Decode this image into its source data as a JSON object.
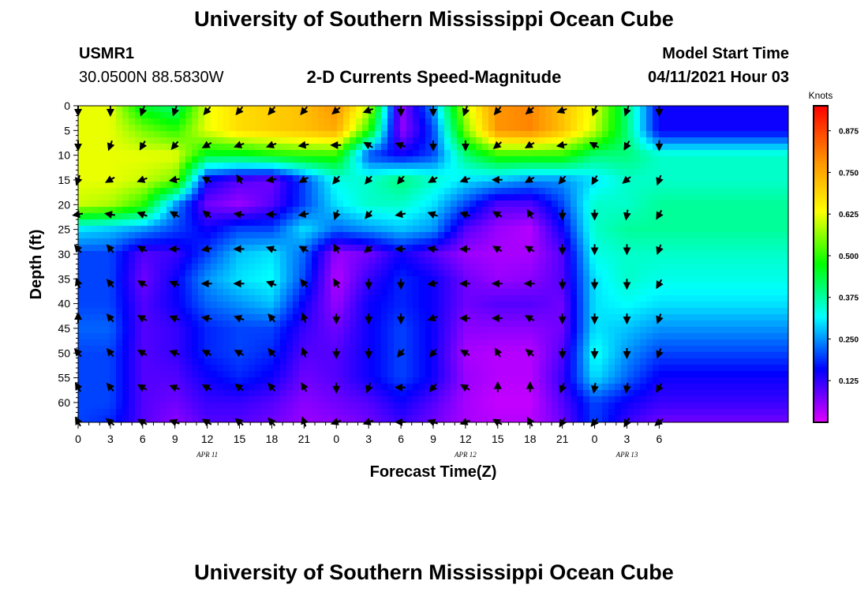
{
  "header": {
    "title": "University of Southern Mississippi Ocean Cube",
    "station_id": "USMR1",
    "coords": "30.0500N  88.5830W",
    "subtitle": "2-D Currents Speed-Magnitude",
    "model_label": "Model Start Time",
    "model_time": "04/11/2021 Hour 03"
  },
  "footer": {
    "title": "University of Southern Mississippi Ocean Cube"
  },
  "colors": {
    "scale": [
      "#e000ff",
      "#0000ff",
      "#00ffff",
      "#00ff00",
      "#ffff00",
      "#ff8c00",
      "#ff0000"
    ],
    "arrow": "#000000"
  },
  "chart_data": {
    "type": "heatmap",
    "xlabel": "Forecast Time(Z)",
    "ylabel": "Depth (ft)",
    "x_hours": [
      0,
      66
    ],
    "ylim": [
      0,
      64
    ],
    "y_ticks": [
      0,
      5,
      10,
      15,
      20,
      25,
      30,
      35,
      40,
      45,
      50,
      55,
      60
    ],
    "x_ticks": [
      {
        "h": 0,
        "label": "0"
      },
      {
        "h": 3,
        "label": "3"
      },
      {
        "h": 6,
        "label": "6"
      },
      {
        "h": 9,
        "label": "9"
      },
      {
        "h": 12,
        "label": "12"
      },
      {
        "h": 15,
        "label": "15"
      },
      {
        "h": 18,
        "label": "18"
      },
      {
        "h": 21,
        "label": "21"
      },
      {
        "h": 24,
        "label": "0"
      },
      {
        "h": 27,
        "label": "3"
      },
      {
        "h": 30,
        "label": "6"
      },
      {
        "h": 33,
        "label": "9"
      },
      {
        "h": 36,
        "label": "12"
      },
      {
        "h": 39,
        "label": "15"
      },
      {
        "h": 42,
        "label": "18"
      },
      {
        "h": 45,
        "label": "21"
      },
      {
        "h": 48,
        "label": "0"
      },
      {
        "h": 51,
        "label": "3"
      },
      {
        "h": 54,
        "label": "6"
      }
    ],
    "dates": [
      {
        "h": 12,
        "label": "APR 11"
      },
      {
        "h": 36,
        "label": "APR 12"
      },
      {
        "h": 51,
        "label": "APR 13"
      }
    ],
    "colorbar": {
      "unit": "Knots",
      "range": [
        0,
        0.95
      ],
      "ticks": [
        "0.125",
        "0.250",
        "0.375",
        "0.500",
        "0.625",
        "0.750",
        "0.875"
      ]
    },
    "speed_depths": [
      0,
      5,
      10,
      15,
      20,
      25,
      30,
      35,
      40,
      45,
      50,
      55,
      60,
      64
    ],
    "speed_hours": [
      0,
      3,
      6,
      9,
      12,
      15,
      18,
      21,
      24,
      27,
      30,
      33,
      36,
      39,
      42,
      45,
      48,
      51,
      54
    ],
    "speed": [
      [
        0.62,
        0.62,
        0.45,
        0.4,
        0.62,
        0.68,
        0.7,
        0.72,
        0.78,
        0.6,
        0.05,
        0.25,
        0.6,
        0.78,
        0.8,
        0.72,
        0.62,
        0.4,
        0.15
      ],
      [
        0.62,
        0.62,
        0.55,
        0.5,
        0.62,
        0.68,
        0.7,
        0.72,
        0.75,
        0.5,
        0.05,
        0.2,
        0.55,
        0.78,
        0.8,
        0.72,
        0.6,
        0.4,
        0.15
      ],
      [
        0.62,
        0.62,
        0.62,
        0.62,
        0.45,
        0.45,
        0.48,
        0.5,
        0.5,
        0.2,
        0.15,
        0.2,
        0.4,
        0.5,
        0.5,
        0.5,
        0.4,
        0.4,
        0.35
      ],
      [
        0.62,
        0.62,
        0.6,
        0.55,
        0.15,
        0.1,
        0.08,
        0.2,
        0.33,
        0.35,
        0.4,
        0.35,
        0.3,
        0.28,
        0.25,
        0.25,
        0.3,
        0.35,
        0.35
      ],
      [
        0.6,
        0.58,
        0.5,
        0.25,
        0.08,
        0.05,
        0.1,
        0.2,
        0.3,
        0.35,
        0.35,
        0.3,
        0.2,
        0.1,
        0.1,
        0.2,
        0.35,
        0.35,
        0.38
      ],
      [
        0.3,
        0.28,
        0.25,
        0.2,
        0.15,
        0.2,
        0.2,
        0.3,
        0.22,
        0.25,
        0.28,
        0.25,
        0.1,
        0.05,
        0.03,
        0.15,
        0.35,
        0.38,
        0.38
      ],
      [
        0.2,
        0.2,
        0.1,
        0.12,
        0.2,
        0.28,
        0.3,
        0.22,
        0.05,
        0.08,
        0.15,
        0.1,
        0.05,
        0.04,
        0.04,
        0.1,
        0.33,
        0.35,
        0.35
      ],
      [
        0.2,
        0.2,
        0.08,
        0.15,
        0.25,
        0.3,
        0.32,
        0.2,
        0.03,
        0.12,
        0.18,
        0.15,
        0.08,
        0.05,
        0.06,
        0.1,
        0.3,
        0.35,
        0.33
      ],
      [
        0.2,
        0.2,
        0.1,
        0.15,
        0.22,
        0.25,
        0.28,
        0.15,
        0.05,
        0.15,
        0.18,
        0.15,
        0.08,
        0.1,
        0.1,
        0.08,
        0.3,
        0.32,
        0.3
      ],
      [
        0.22,
        0.22,
        0.1,
        0.12,
        0.18,
        0.2,
        0.2,
        0.12,
        0.08,
        0.15,
        0.2,
        0.15,
        0.06,
        0.06,
        0.06,
        0.08,
        0.3,
        0.28,
        0.25
      ],
      [
        0.2,
        0.2,
        0.1,
        0.12,
        0.18,
        0.2,
        0.18,
        0.1,
        0.1,
        0.15,
        0.2,
        0.15,
        0.04,
        0.03,
        0.03,
        0.1,
        0.33,
        0.25,
        0.2
      ],
      [
        0.2,
        0.2,
        0.1,
        0.1,
        0.15,
        0.18,
        0.15,
        0.08,
        0.1,
        0.15,
        0.2,
        0.15,
        0.05,
        0.03,
        0.03,
        0.12,
        0.3,
        0.22,
        0.15
      ],
      [
        0.2,
        0.2,
        0.1,
        0.08,
        0.12,
        0.12,
        0.1,
        0.06,
        0.08,
        0.1,
        0.15,
        0.1,
        0.04,
        0.02,
        0.02,
        0.1,
        0.2,
        0.15,
        0.12
      ],
      [
        0.2,
        0.18,
        0.1,
        0.06,
        0.1,
        0.1,
        0.08,
        0.05,
        0.06,
        0.08,
        0.12,
        0.08,
        0.04,
        0.03,
        0.03,
        0.08,
        0.2,
        0.12,
        0.08
      ]
    ],
    "arrow_hours": [
      0,
      3,
      6,
      9,
      12,
      15,
      18,
      21,
      24,
      27,
      30,
      33,
      36,
      39,
      42,
      45,
      48,
      51,
      54
    ],
    "arrow_depths": [
      0,
      7,
      14,
      21,
      28,
      35,
      42,
      49,
      56,
      63
    ],
    "arrow_dirs_deg": [
      [
        180,
        180,
        200,
        200,
        220,
        220,
        220,
        220,
        230,
        250,
        180,
        180,
        200,
        220,
        230,
        250,
        200,
        200,
        180
      ],
      [
        180,
        200,
        210,
        220,
        240,
        250,
        250,
        260,
        270,
        300,
        290,
        180,
        180,
        230,
        240,
        260,
        300,
        210,
        180
      ],
      [
        200,
        240,
        250,
        260,
        300,
        330,
        260,
        240,
        220,
        220,
        220,
        240,
        250,
        270,
        240,
        220,
        210,
        230,
        200
      ],
      [
        260,
        280,
        290,
        300,
        310,
        280,
        270,
        260,
        200,
        220,
        260,
        290,
        290,
        300,
        330,
        180,
        180,
        190,
        210
      ],
      [
        320,
        320,
        300,
        270,
        260,
        270,
        290,
        300,
        330,
        230,
        270,
        280,
        270,
        300,
        300,
        180,
        180,
        180,
        200
      ],
      [
        340,
        320,
        300,
        290,
        270,
        270,
        290,
        320,
        330,
        180,
        180,
        260,
        270,
        270,
        270,
        180,
        180,
        180,
        210
      ],
      [
        0,
        320,
        300,
        290,
        280,
        290,
        320,
        340,
        180,
        180,
        180,
        250,
        270,
        270,
        300,
        180,
        180,
        180,
        200
      ],
      [
        320,
        320,
        300,
        290,
        300,
        300,
        320,
        340,
        180,
        180,
        220,
        220,
        300,
        330,
        310,
        180,
        180,
        180,
        200
      ],
      [
        330,
        320,
        300,
        290,
        300,
        310,
        320,
        330,
        180,
        200,
        270,
        220,
        300,
        0,
        0,
        200,
        190,
        190,
        210
      ],
      [
        330,
        310,
        300,
        290,
        300,
        310,
        320,
        340,
        250,
        250,
        270,
        290,
        250,
        300,
        330,
        210,
        220,
        210,
        230
      ]
    ]
  }
}
